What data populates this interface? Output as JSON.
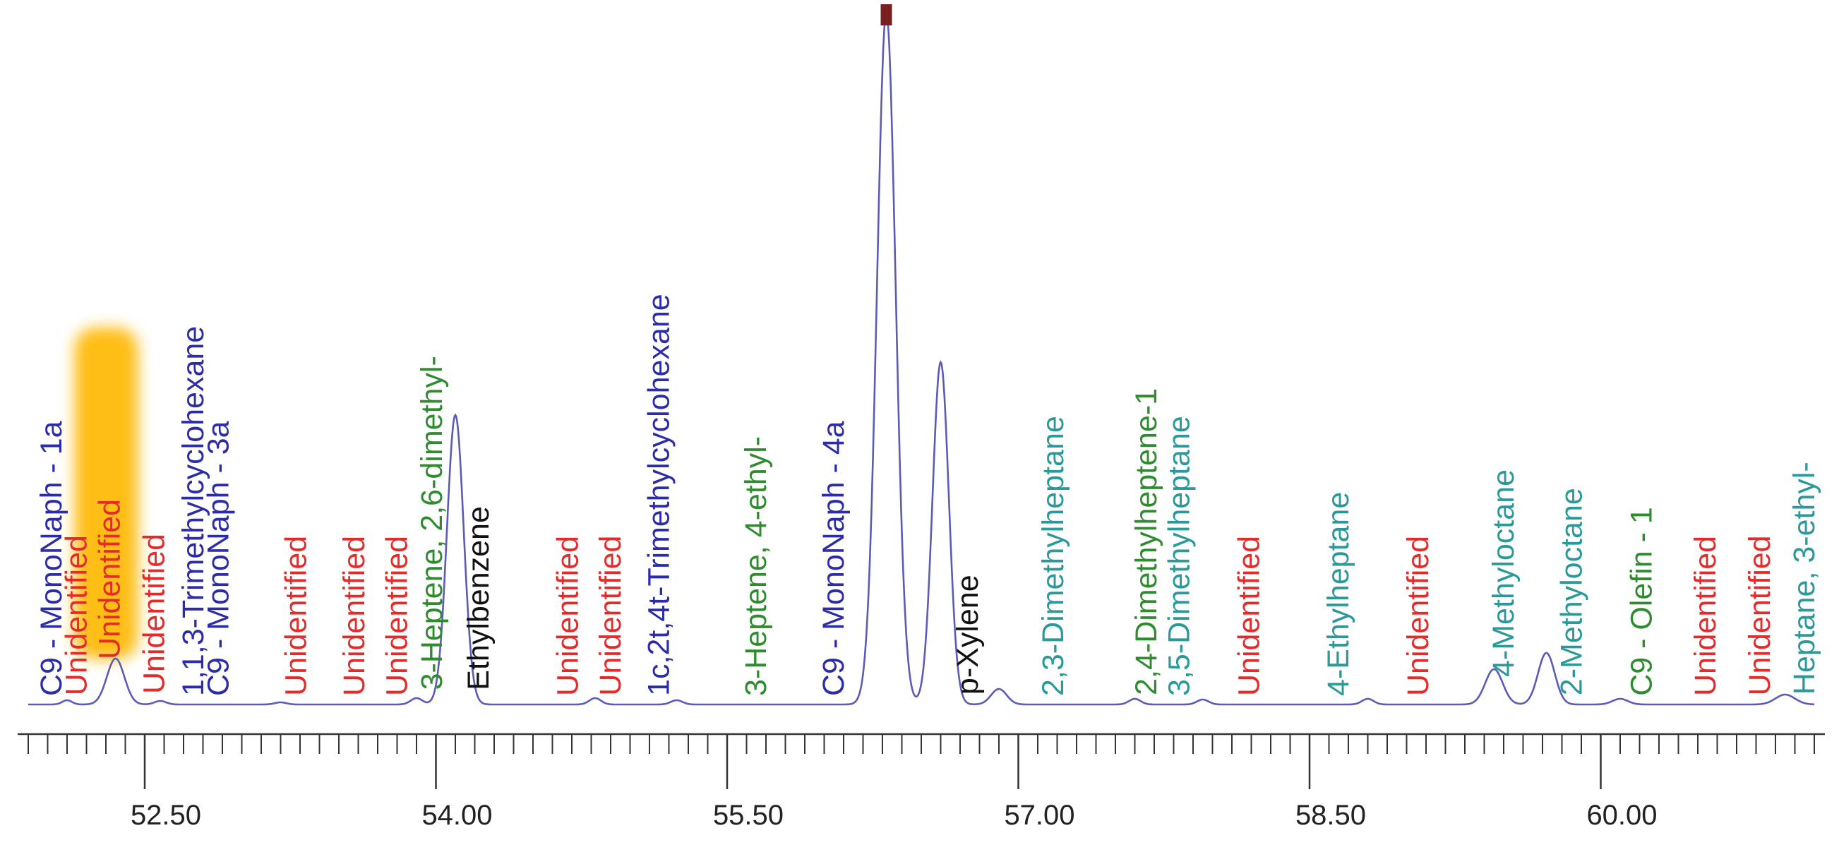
{
  "chart_data": {
    "type": "line",
    "title": "",
    "xlabel": "",
    "ylabel": "",
    "xlim": [
      51.9,
      61.1
    ],
    "ylim": [
      0,
      100
    ],
    "grid": false,
    "line_color": "#5b5bb8",
    "x_ticks": [
      52.5,
      54.0,
      55.5,
      57.0,
      58.5,
      60.0
    ],
    "x_tick_labels": [
      "52.50",
      "54.00",
      "55.50",
      "57.00",
      "58.50",
      "60.00"
    ],
    "minor_tick_step": 0.1,
    "baseline": 2,
    "peaks": [
      {
        "x": 52.1,
        "h": 0.6,
        "w": 0.025
      },
      {
        "x": 52.35,
        "h": 6.5,
        "w": 0.045
      },
      {
        "x": 52.58,
        "h": 0.5,
        "w": 0.03
      },
      {
        "x": 53.2,
        "h": 0.3,
        "w": 0.03
      },
      {
        "x": 53.9,
        "h": 0.9,
        "w": 0.03
      },
      {
        "x": 54.1,
        "h": 41.0,
        "w": 0.043
      },
      {
        "x": 54.82,
        "h": 0.9,
        "w": 0.03
      },
      {
        "x": 55.24,
        "h": 0.6,
        "w": 0.03
      },
      {
        "x": 56.32,
        "h": 98.0,
        "w": 0.048
      },
      {
        "x": 56.6,
        "h": 48.5,
        "w": 0.042
      },
      {
        "x": 56.9,
        "h": 2.2,
        "w": 0.04
      },
      {
        "x": 57.6,
        "h": 0.8,
        "w": 0.03
      },
      {
        "x": 57.95,
        "h": 0.7,
        "w": 0.03
      },
      {
        "x": 58.8,
        "h": 0.8,
        "w": 0.03
      },
      {
        "x": 59.45,
        "h": 5.0,
        "w": 0.045
      },
      {
        "x": 59.72,
        "h": 7.3,
        "w": 0.043
      },
      {
        "x": 60.1,
        "h": 0.8,
        "w": 0.04
      },
      {
        "x": 60.95,
        "h": 1.4,
        "w": 0.05
      }
    ],
    "annotations": [
      {
        "text": "C9 - MonoNaph - 1a",
        "x": 52.02,
        "color": "#2c2ca8"
      },
      {
        "text": "Unidentified",
        "x": 52.15,
        "color": "#e52a2a"
      },
      {
        "text": "Unidentified",
        "x": 52.32,
        "color": "#e52a2a",
        "highlight": true
      },
      {
        "text": "Unidentified",
        "x": 52.55,
        "color": "#e52a2a"
      },
      {
        "text": "1,1,3-Trimethylcyclohexane",
        "x": 52.75,
        "color": "#2c2ca8"
      },
      {
        "text": "C9 - MonoNaph - 3a",
        "x": 52.88,
        "color": "#2c2ca8"
      },
      {
        "text": "Unidentified",
        "x": 53.28,
        "color": "#e52a2a"
      },
      {
        "text": "Unidentified",
        "x": 53.58,
        "color": "#e52a2a"
      },
      {
        "text": "Unidentified",
        "x": 53.8,
        "color": "#e52a2a"
      },
      {
        "text": "3-Heptene, 2,6-dimethyl-",
        "x": 53.98,
        "color": "#2e8c2e"
      },
      {
        "text": "Ethylbenzene",
        "x": 54.22,
        "color": "#111111"
      },
      {
        "text": "Unidentified",
        "x": 54.68,
        "color": "#e52a2a"
      },
      {
        "text": "Unidentified",
        "x": 54.9,
        "color": "#e52a2a"
      },
      {
        "text": "1c,2t,4t-Trimethylcyclohexane",
        "x": 55.15,
        "color": "#2c2ca8"
      },
      {
        "text": "3-Heptene,  4-ethyl-",
        "x": 55.65,
        "color": "#2e8c2e"
      },
      {
        "text": "C9 - MonoNaph - 4a",
        "x": 56.05,
        "color": "#2c2ca8"
      },
      {
        "text": "p-Xylene",
        "x": 56.74,
        "color": "#111111"
      },
      {
        "text": "2,3-Dimethylheptane",
        "x": 57.18,
        "color": "#2a9999"
      },
      {
        "text": "2,4-Dimethylheptene-1",
        "x": 57.66,
        "color": "#2e8c2e"
      },
      {
        "text": "3,5-Dimethylheptane",
        "x": 57.83,
        "color": "#2a9999"
      },
      {
        "text": "Unidentified",
        "x": 58.19,
        "color": "#e52a2a"
      },
      {
        "text": "4-Ethylheptane",
        "x": 58.65,
        "color": "#2a9999"
      },
      {
        "text": "Unidentified",
        "x": 59.06,
        "color": "#e52a2a"
      },
      {
        "text": "4-Methyloctane",
        "x": 59.5,
        "color": "#2a9999"
      },
      {
        "text": "2-Methyloctane",
        "x": 59.85,
        "color": "#2a9999"
      },
      {
        "text": "C9 - Olefin - 1",
        "x": 60.21,
        "color": "#2e8c2e"
      },
      {
        "text": "Unidentified",
        "x": 60.54,
        "color": "#e52a2a"
      },
      {
        "text": "Unidentified",
        "x": 60.82,
        "color": "#e52a2a"
      },
      {
        "text": "Heptane, 3-ethyl-",
        "x": 61.05,
        "color": "#2a9999"
      }
    ]
  }
}
